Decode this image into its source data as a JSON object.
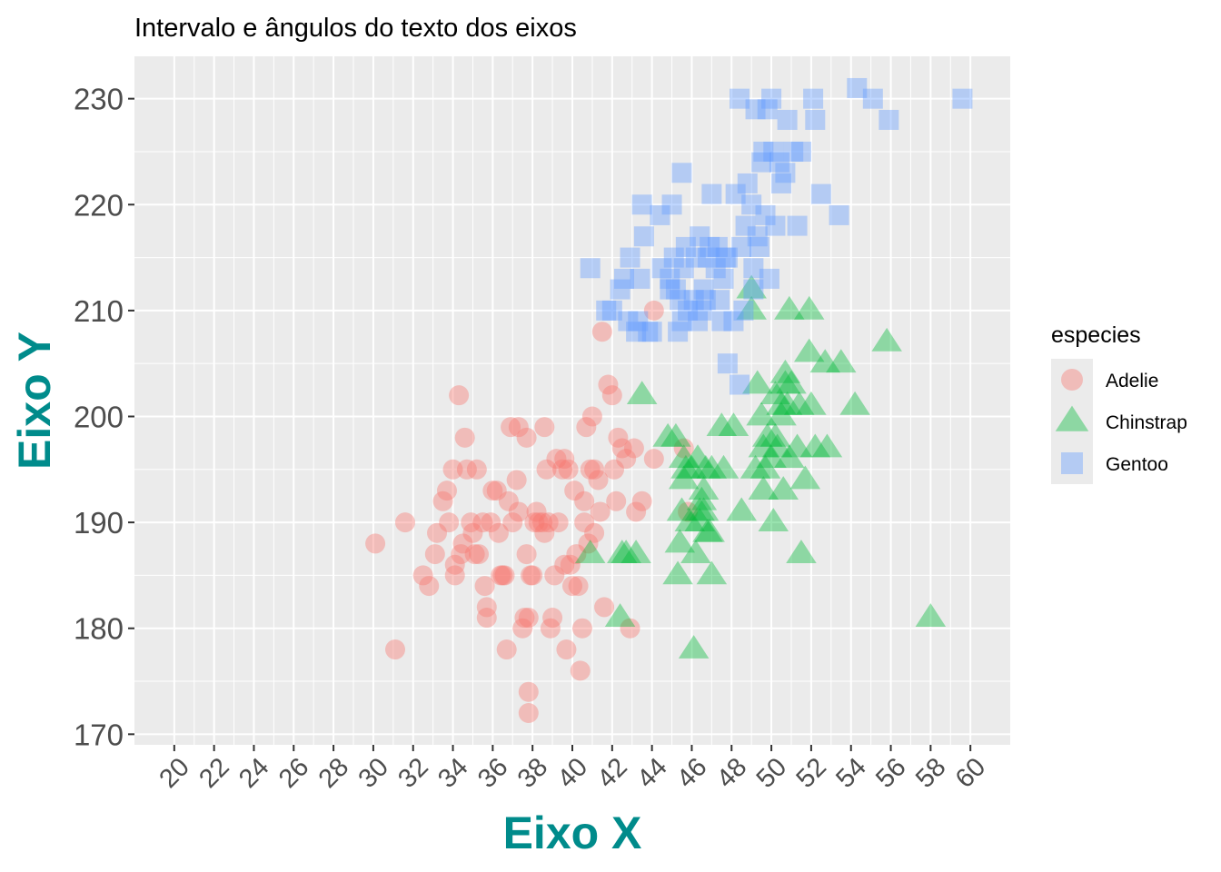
{
  "chart_data": {
    "type": "scatter",
    "title": "Intervalo e ângulos do texto dos eixos",
    "xlabel": "Eixo X",
    "ylabel": "Eixo Y",
    "xlim": [
      18,
      62
    ],
    "ylim": [
      169,
      234
    ],
    "x_ticks": [
      20,
      22,
      24,
      26,
      28,
      30,
      32,
      34,
      36,
      38,
      40,
      42,
      44,
      46,
      48,
      50,
      52,
      54,
      56,
      58,
      60
    ],
    "y_ticks": [
      170,
      180,
      190,
      200,
      210,
      220,
      230
    ],
    "x_tick_angle": 45,
    "grid": true,
    "legend": {
      "title": "especies",
      "position": "right"
    },
    "series": [
      {
        "name": "Adelie",
        "shape": "circle",
        "color": "#F8766D",
        "points": [
          [
            30.1,
            188
          ],
          [
            31.1,
            178
          ],
          [
            31.6,
            190
          ],
          [
            32.5,
            185
          ],
          [
            32.8,
            184
          ],
          [
            33.1,
            187
          ],
          [
            33.2,
            189
          ],
          [
            33.5,
            192
          ],
          [
            33.7,
            193
          ],
          [
            33.8,
            190
          ],
          [
            34.0,
            195
          ],
          [
            34.1,
            186
          ],
          [
            34.1,
            185
          ],
          [
            34.3,
            202
          ],
          [
            34.4,
            187
          ],
          [
            34.5,
            188
          ],
          [
            34.6,
            198
          ],
          [
            34.7,
            195
          ],
          [
            34.9,
            190
          ],
          [
            35.0,
            189
          ],
          [
            35.1,
            187
          ],
          [
            35.2,
            195
          ],
          [
            35.3,
            187
          ],
          [
            35.5,
            190
          ],
          [
            35.6,
            184
          ],
          [
            35.7,
            182
          ],
          [
            35.7,
            181
          ],
          [
            35.9,
            190
          ],
          [
            36.0,
            193
          ],
          [
            36.2,
            193
          ],
          [
            36.3,
            189
          ],
          [
            36.4,
            185
          ],
          [
            36.5,
            185
          ],
          [
            36.6,
            185
          ],
          [
            36.7,
            178
          ],
          [
            36.8,
            192
          ],
          [
            36.9,
            199
          ],
          [
            37.0,
            190
          ],
          [
            37.2,
            194
          ],
          [
            37.3,
            191
          ],
          [
            37.3,
            199
          ],
          [
            37.5,
            180
          ],
          [
            37.6,
            181
          ],
          [
            37.7,
            187
          ],
          [
            37.7,
            198
          ],
          [
            37.8,
            174
          ],
          [
            37.8,
            172
          ],
          [
            37.8,
            181
          ],
          [
            37.9,
            185
          ],
          [
            38.0,
            185
          ],
          [
            38.1,
            190
          ],
          [
            38.2,
            191
          ],
          [
            38.3,
            190
          ],
          [
            38.5,
            190
          ],
          [
            38.6,
            199
          ],
          [
            38.6,
            189
          ],
          [
            38.7,
            195
          ],
          [
            38.8,
            190
          ],
          [
            38.9,
            180
          ],
          [
            39.0,
            181
          ],
          [
            39.1,
            185
          ],
          [
            39.2,
            196
          ],
          [
            39.3,
            190
          ],
          [
            39.5,
            195
          ],
          [
            39.6,
            196
          ],
          [
            39.6,
            186
          ],
          [
            39.7,
            178
          ],
          [
            39.8,
            195
          ],
          [
            39.9,
            186
          ],
          [
            40.0,
            184
          ],
          [
            40.1,
            193
          ],
          [
            40.2,
            187
          ],
          [
            40.3,
            184
          ],
          [
            40.4,
            176
          ],
          [
            40.5,
            180
          ],
          [
            40.6,
            190
          ],
          [
            40.6,
            192
          ],
          [
            40.7,
            199
          ],
          [
            40.8,
            188
          ],
          [
            40.9,
            195
          ],
          [
            41.0,
            200
          ],
          [
            41.1,
            189
          ],
          [
            41.1,
            195
          ],
          [
            41.3,
            194
          ],
          [
            41.4,
            191
          ],
          [
            41.5,
            208
          ],
          [
            41.6,
            182
          ],
          [
            41.8,
            203
          ],
          [
            42.0,
            202
          ],
          [
            42.1,
            195
          ],
          [
            42.2,
            192
          ],
          [
            42.3,
            198
          ],
          [
            42.5,
            197
          ],
          [
            42.7,
            196
          ],
          [
            42.9,
            180
          ],
          [
            43.1,
            197
          ],
          [
            43.2,
            191
          ],
          [
            43.5,
            192
          ],
          [
            44.1,
            210
          ],
          [
            44.1,
            196
          ],
          [
            45.6,
            197
          ],
          [
            45.8,
            191
          ]
        ]
      },
      {
        "name": "Chinstrap",
        "shape": "triangle",
        "color": "#00BA38",
        "points": [
          [
            40.9,
            187
          ],
          [
            42.4,
            181
          ],
          [
            42.5,
            187
          ],
          [
            42.7,
            187
          ],
          [
            43.2,
            187
          ],
          [
            43.5,
            202
          ],
          [
            45.2,
            198
          ],
          [
            45.4,
            188
          ],
          [
            45.5,
            191
          ],
          [
            45.6,
            194
          ],
          [
            45.7,
            195
          ],
          [
            45.9,
            190
          ],
          [
            46.0,
            195
          ],
          [
            46.1,
            178
          ],
          [
            46.2,
            187
          ],
          [
            46.4,
            190
          ],
          [
            46.4,
            191
          ],
          [
            46.5,
            192
          ],
          [
            46.6,
            193
          ],
          [
            46.7,
            195
          ],
          [
            46.8,
            189
          ],
          [
            46.9,
            189
          ],
          [
            47.0,
            185
          ],
          [
            47.5,
            199
          ],
          [
            47.6,
            195
          ],
          [
            48.1,
            199
          ],
          [
            48.5,
            191
          ],
          [
            49.0,
            210
          ],
          [
            49.2,
            195
          ],
          [
            49.3,
            203
          ],
          [
            49.5,
            200
          ],
          [
            49.6,
            193
          ],
          [
            49.7,
            195
          ],
          [
            49.8,
            198
          ],
          [
            50.0,
            196
          ],
          [
            50.1,
            190
          ],
          [
            50.2,
            198
          ],
          [
            50.3,
            197
          ],
          [
            50.5,
            200
          ],
          [
            50.6,
            193
          ],
          [
            50.7,
            203
          ],
          [
            50.8,
            201
          ],
          [
            50.9,
            196
          ],
          [
            51.0,
            203
          ],
          [
            51.3,
            197
          ],
          [
            51.4,
            201
          ],
          [
            51.5,
            187
          ],
          [
            51.7,
            194
          ],
          [
            51.9,
            206
          ],
          [
            52.0,
            201
          ],
          [
            52.2,
            197
          ],
          [
            52.7,
            205
          ],
          [
            52.8,
            197
          ],
          [
            53.5,
            205
          ],
          [
            54.2,
            201
          ],
          [
            55.8,
            207
          ],
          [
            58.0,
            181
          ],
          [
            49.0,
            212
          ],
          [
            49.6,
            197
          ],
          [
            50.2,
            202
          ],
          [
            50.9,
            210
          ],
          [
            51.9,
            210
          ],
          [
            50.7,
            204
          ],
          [
            45.6,
            196
          ],
          [
            46.6,
            191
          ],
          [
            44.8,
            198
          ],
          [
            46.3,
            196
          ],
          [
            45.3,
            185
          ],
          [
            47.0,
            195
          ],
          [
            50.5,
            201
          ]
        ]
      },
      {
        "name": "Gentoo",
        "shape": "square",
        "color": "#619CFF",
        "points": [
          [
            40.9,
            214
          ],
          [
            41.7,
            210
          ],
          [
            42.0,
            210
          ],
          [
            42.4,
            212
          ],
          [
            42.6,
            213
          ],
          [
            42.8,
            209
          ],
          [
            42.9,
            215
          ],
          [
            43.2,
            208
          ],
          [
            43.3,
            209
          ],
          [
            43.4,
            213
          ],
          [
            43.5,
            220
          ],
          [
            43.6,
            217
          ],
          [
            43.8,
            208
          ],
          [
            44.0,
            208
          ],
          [
            44.4,
            219
          ],
          [
            44.5,
            214
          ],
          [
            44.9,
            212
          ],
          [
            45.0,
            220
          ],
          [
            45.1,
            215
          ],
          [
            45.2,
            212
          ],
          [
            45.3,
            208
          ],
          [
            45.4,
            211
          ],
          [
            45.5,
            209
          ],
          [
            45.5,
            223
          ],
          [
            45.6,
            214
          ],
          [
            45.7,
            216
          ],
          [
            45.8,
            210
          ],
          [
            46.1,
            211
          ],
          [
            46.2,
            215
          ],
          [
            46.3,
            209
          ],
          [
            46.4,
            217
          ],
          [
            46.5,
            210
          ],
          [
            46.6,
            212
          ],
          [
            46.8,
            215
          ],
          [
            46.9,
            216
          ],
          [
            47.0,
            221
          ],
          [
            47.2,
            214
          ],
          [
            47.3,
            216
          ],
          [
            47.4,
            211
          ],
          [
            47.5,
            209
          ],
          [
            47.7,
            215
          ],
          [
            47.8,
            215
          ],
          [
            48.1,
            209
          ],
          [
            48.2,
            221
          ],
          [
            48.4,
            230
          ],
          [
            48.5,
            216
          ],
          [
            48.6,
            210
          ],
          [
            48.7,
            218
          ],
          [
            48.8,
            222
          ],
          [
            49.0,
            220
          ],
          [
            49.1,
            212
          ],
          [
            49.2,
            229
          ],
          [
            49.3,
            217
          ],
          [
            49.4,
            216
          ],
          [
            49.5,
            224
          ],
          [
            49.6,
            225
          ],
          [
            49.7,
            219
          ],
          [
            49.8,
            229
          ],
          [
            49.9,
            213
          ],
          [
            50.0,
            230
          ],
          [
            50.1,
            225
          ],
          [
            50.2,
            218
          ],
          [
            50.4,
            224
          ],
          [
            50.5,
            222
          ],
          [
            50.7,
            223
          ],
          [
            50.8,
            228
          ],
          [
            51.1,
            225
          ],
          [
            51.3,
            218
          ],
          [
            51.5,
            225
          ],
          [
            52.1,
            230
          ],
          [
            52.2,
            228
          ],
          [
            52.5,
            221
          ],
          [
            53.4,
            219
          ],
          [
            54.3,
            231
          ],
          [
            55.1,
            230
          ],
          [
            55.9,
            228
          ],
          [
            59.6,
            230
          ],
          [
            47.6,
            213
          ],
          [
            44.9,
            213
          ],
          [
            46.7,
            211
          ],
          [
            49.1,
            214
          ],
          [
            48.4,
            203
          ],
          [
            47.8,
            205
          ]
        ]
      }
    ]
  }
}
